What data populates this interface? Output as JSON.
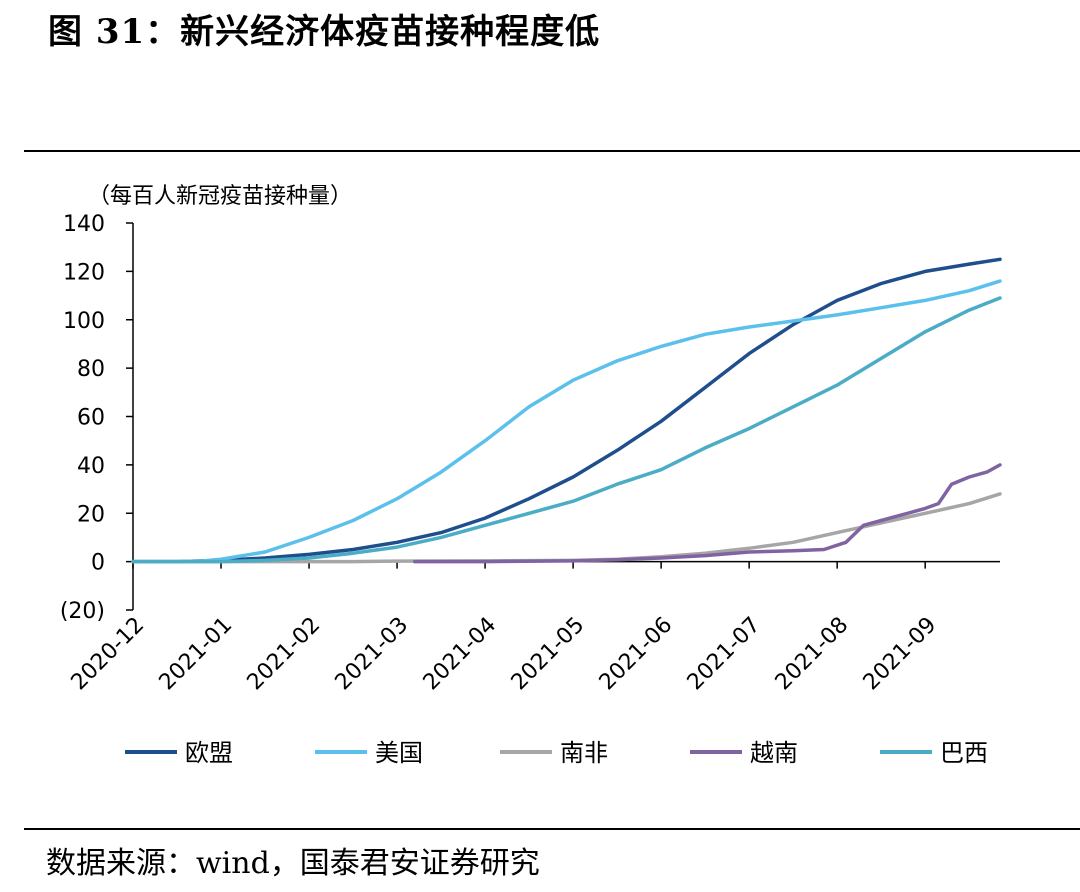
{
  "figure": {
    "title": "图  31：新兴经济体疫苗接种程度低",
    "source": "数据来源：wind，国泰君安证券研究"
  },
  "chart_data": {
    "type": "line",
    "ylabel": "（每百人新冠疫苗接种量）",
    "ylim": [
      -20,
      140
    ],
    "yticks": [
      {
        "value": 140,
        "label": "140"
      },
      {
        "value": 120,
        "label": "120"
      },
      {
        "value": 100,
        "label": "100"
      },
      {
        "value": 80,
        "label": "80"
      },
      {
        "value": 60,
        "label": "60"
      },
      {
        "value": 40,
        "label": "40"
      },
      {
        "value": 20,
        "label": "20"
      },
      {
        "value": 0,
        "label": "0"
      },
      {
        "value": -20,
        "label": "(20)",
        "color": "#e02020"
      }
    ],
    "xticks": [
      "2020-12",
      "2021-01",
      "2021-02",
      "2021-03",
      "2021-04",
      "2021-05",
      "2021-06",
      "2021-07",
      "2021-08",
      "2021-09"
    ],
    "xlim": [
      0,
      9.85
    ],
    "grid": false,
    "legend_position": "bottom",
    "series": [
      {
        "name": "欧盟",
        "color": "#1f4e8c",
        "x": [
          0,
          0.5,
          1,
          1.5,
          2,
          2.5,
          3,
          3.5,
          4,
          4.5,
          5,
          5.5,
          6,
          6.5,
          7,
          7.5,
          8,
          8.5,
          9,
          9.5,
          9.85
        ],
        "y": [
          0,
          0,
          0.5,
          1.5,
          3,
          5,
          8,
          12,
          18,
          26,
          35,
          46,
          58,
          72,
          86,
          98,
          108,
          115,
          120,
          123,
          125
        ]
      },
      {
        "name": "美国",
        "color": "#5bc0eb",
        "x": [
          0,
          0.5,
          0.8,
          1,
          1.5,
          2,
          2.5,
          3,
          3.5,
          4,
          4.5,
          5,
          5.5,
          6,
          6.5,
          7,
          7.5,
          8,
          8.5,
          9,
          9.5,
          9.85
        ],
        "y": [
          0,
          0,
          0.3,
          1,
          4,
          10,
          17,
          26,
          37,
          50,
          64,
          75,
          83,
          89,
          94,
          97,
          99.5,
          102,
          105,
          108,
          112,
          116
        ]
      },
      {
        "name": "南非",
        "color": "#a6a6a6",
        "x": [
          0,
          2,
          2.5,
          3,
          4,
          5,
          5.5,
          6,
          6.5,
          7,
          7.5,
          8,
          8.5,
          9,
          9.5,
          9.85
        ],
        "y": [
          0,
          0,
          0,
          0.2,
          0.3,
          0.5,
          1,
          2,
          3.5,
          5.5,
          8,
          12,
          16,
          20,
          24,
          28
        ]
      },
      {
        "name": "越南",
        "color": "#8064a2",
        "x": [
          3.2,
          4,
          5,
          5.5,
          6,
          6.5,
          7,
          7.5,
          7.85,
          8.1,
          8.3,
          8.5,
          8.8,
          9,
          9.15,
          9.3,
          9.5,
          9.7,
          9.85
        ],
        "y": [
          0,
          0,
          0.3,
          0.8,
          1.5,
          2.5,
          4,
          4.5,
          5,
          8,
          15,
          17,
          20,
          22,
          24,
          32,
          35,
          37,
          40
        ]
      },
      {
        "name": "巴西",
        "color": "#4bacc6",
        "x": [
          0,
          1,
          1.3,
          1.5,
          2,
          2.5,
          3,
          3.5,
          4,
          4.5,
          5,
          5.5,
          6,
          6.5,
          7,
          7.5,
          8,
          8.5,
          9,
          9.5,
          9.85
        ],
        "y": [
          0,
          0,
          0.3,
          0.5,
          1.5,
          3.5,
          6,
          10,
          15,
          20,
          25,
          32,
          38,
          47,
          55,
          64,
          73,
          84,
          95,
          104,
          109
        ]
      }
    ]
  }
}
